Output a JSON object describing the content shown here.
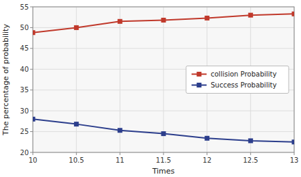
{
  "chart_data": {
    "type": "line",
    "x": [
      10,
      10.5,
      11,
      11.5,
      12,
      12.5,
      13
    ],
    "series": [
      {
        "name": "collision Probability",
        "color": "#c0392b",
        "marker": "square",
        "line_style": "solid",
        "values": [
          48.8,
          50.0,
          51.5,
          51.8,
          52.3,
          53.0,
          53.3
        ]
      },
      {
        "name": "Success Probability",
        "color": "#2c3e8c",
        "marker": "square",
        "line_style": "solid",
        "values": [
          28.0,
          26.8,
          25.3,
          24.5,
          23.4,
          22.8,
          22.5
        ]
      }
    ],
    "xlabel": "Times",
    "ylabel": "The percentage of probability",
    "xlim": [
      10,
      13
    ],
    "ylim": [
      20,
      55
    ],
    "xticks": [
      10,
      10.5,
      11,
      11.5,
      12,
      12.5,
      13
    ],
    "yticks": [
      20,
      25,
      30,
      35,
      40,
      45,
      50,
      55
    ],
    "grid": true,
    "legend": "center right"
  }
}
